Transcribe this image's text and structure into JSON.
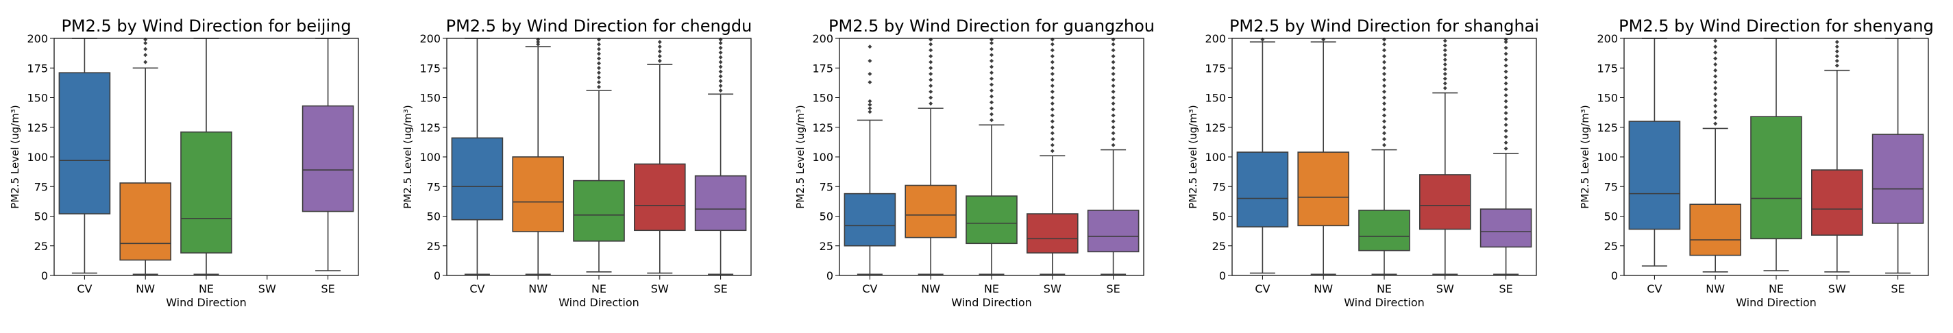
{
  "chart_data": [
    {
      "type": "box",
      "title": "PM2.5 by Wind Direction for beijing",
      "xlabel": "Wind Direction",
      "ylabel": "PM2.5 Level (ug/m³)",
      "ylim": [
        0,
        200
      ],
      "yticks": [
        "0",
        "25",
        "50",
        "75",
        "100",
        "125",
        "150",
        "175",
        "200"
      ],
      "categories": [
        "CV",
        "NW",
        "NE",
        "SW",
        "SE"
      ],
      "colors": [
        "#3a73a9",
        "#e0812e",
        "#4c9a45",
        "#b83f3f",
        "#8e6bae"
      ],
      "boxes": [
        {
          "q1": 52,
          "median": 97,
          "q3": 171,
          "whisker_low": 2,
          "whisker_high": 200,
          "outliers": []
        },
        {
          "q1": 13,
          "median": 27,
          "q3": 78,
          "whisker_low": 1,
          "whisker_high": 175,
          "outliers": [
            180,
            186,
            191,
            196,
            199
          ]
        },
        {
          "q1": 19,
          "median": 48,
          "q3": 121,
          "whisker_low": 1,
          "whisker_high": 200,
          "outliers": []
        },
        null,
        {
          "q1": 54,
          "median": 89,
          "q3": 143,
          "whisker_low": 4,
          "whisker_high": 200,
          "outliers": []
        }
      ]
    },
    {
      "type": "box",
      "title": "PM2.5 by Wind Direction for chengdu",
      "xlabel": "Wind Direction",
      "ylabel": "PM2.5 Level (ug/m³)",
      "ylim": [
        0,
        200
      ],
      "yticks": [
        "0",
        "25",
        "50",
        "75",
        "100",
        "125",
        "150",
        "175",
        "200"
      ],
      "categories": [
        "CV",
        "NW",
        "NE",
        "SW",
        "SE"
      ],
      "colors": [
        "#3a73a9",
        "#e0812e",
        "#4c9a45",
        "#b83f3f",
        "#8e6bae"
      ],
      "boxes": [
        {
          "q1": 47,
          "median": 75,
          "q3": 116,
          "whisker_low": 1,
          "whisker_high": 200,
          "outliers": []
        },
        {
          "q1": 37,
          "median": 62,
          "q3": 100,
          "whisker_low": 1,
          "whisker_high": 193,
          "outliers": [
            195,
            197,
            199
          ]
        },
        {
          "q1": 29,
          "median": 51,
          "q3": 80,
          "whisker_low": 3,
          "whisker_high": 156,
          "outliers": [
            159,
            163,
            167,
            171,
            175,
            179,
            183,
            187,
            191,
            195,
            199
          ]
        },
        {
          "q1": 38,
          "median": 59,
          "q3": 94,
          "whisker_low": 2,
          "whisker_high": 178,
          "outliers": [
            181,
            185,
            189,
            193,
            197
          ]
        },
        {
          "q1": 38,
          "median": 56,
          "q3": 84,
          "whisker_low": 1,
          "whisker_high": 153,
          "outliers": [
            156,
            160,
            164,
            168,
            172,
            176,
            180,
            184,
            188,
            192,
            196,
            199
          ]
        }
      ]
    },
    {
      "type": "box",
      "title": "PM2.5 by Wind Direction for guangzhou",
      "xlabel": "Wind Direction",
      "ylabel": "PM2.5 Level (ug/m³)",
      "ylim": [
        0,
        200
      ],
      "yticks": [
        "0",
        "25",
        "50",
        "75",
        "100",
        "125",
        "150",
        "175",
        "200"
      ],
      "categories": [
        "CV",
        "NW",
        "NE",
        "SW",
        "SE"
      ],
      "colors": [
        "#3a73a9",
        "#e0812e",
        "#4c9a45",
        "#b83f3f",
        "#8e6bae"
      ],
      "boxes": [
        {
          "q1": 25,
          "median": 42,
          "q3": 69,
          "whisker_low": 1,
          "whisker_high": 131,
          "outliers": [
            138,
            141,
            144,
            147,
            163,
            170,
            181,
            193
          ]
        },
        {
          "q1": 32,
          "median": 51,
          "q3": 76,
          "whisker_low": 1,
          "whisker_high": 141,
          "outliers": [
            145,
            150,
            155,
            160,
            165,
            170,
            175,
            180,
            185,
            190,
            195,
            199
          ]
        },
        {
          "q1": 27,
          "median": 44,
          "q3": 67,
          "whisker_low": 1,
          "whisker_high": 127,
          "outliers": [
            131,
            136,
            141,
            146,
            151,
            156,
            161,
            166,
            171,
            176,
            181,
            186,
            191,
            196,
            199
          ]
        },
        {
          "q1": 19,
          "median": 31,
          "q3": 52,
          "whisker_low": 1,
          "whisker_high": 101,
          "outliers": [
            105,
            110,
            115,
            120,
            125,
            130,
            135,
            140,
            145,
            150,
            155,
            160,
            165,
            170,
            175,
            180,
            185,
            190,
            195,
            199
          ]
        },
        {
          "q1": 20,
          "median": 33,
          "q3": 55,
          "whisker_low": 1,
          "whisker_high": 106,
          "outliers": [
            110,
            115,
            120,
            125,
            130,
            135,
            140,
            145,
            150,
            155,
            160,
            165,
            170,
            175,
            180,
            185,
            190,
            195,
            199
          ]
        }
      ]
    },
    {
      "type": "box",
      "title": "PM2.5 by Wind Direction for shanghai",
      "xlabel": "Wind Direction",
      "ylabel": "PM2.5 Level (ug/m³)",
      "ylim": [
        0,
        200
      ],
      "yticks": [
        "0",
        "25",
        "50",
        "75",
        "100",
        "125",
        "150",
        "175",
        "200"
      ],
      "categories": [
        "CV",
        "NW",
        "NE",
        "SW",
        "SE"
      ],
      "colors": [
        "#3a73a9",
        "#e0812e",
        "#4c9a45",
        "#b83f3f",
        "#8e6bae"
      ],
      "boxes": [
        {
          "q1": 41,
          "median": 65,
          "q3": 104,
          "whisker_low": 2,
          "whisker_high": 197,
          "outliers": [
            199
          ]
        },
        {
          "q1": 42,
          "median": 66,
          "q3": 104,
          "whisker_low": 1,
          "whisker_high": 197,
          "outliers": [
            199
          ]
        },
        {
          "q1": 21,
          "median": 33,
          "q3": 55,
          "whisker_low": 1,
          "whisker_high": 106,
          "outliers": [
            110,
            115,
            120,
            125,
            130,
            135,
            140,
            145,
            150,
            155,
            160,
            165,
            170,
            175,
            180,
            185,
            190,
            195,
            199
          ]
        },
        {
          "q1": 39,
          "median": 59,
          "q3": 85,
          "whisker_low": 1,
          "whisker_high": 154,
          "outliers": [
            158,
            162,
            166,
            170,
            174,
            178,
            182,
            186,
            190,
            194,
            198
          ]
        },
        {
          "q1": 24,
          "median": 37,
          "q3": 56,
          "whisker_low": 1,
          "whisker_high": 103,
          "outliers": [
            107,
            112,
            117,
            122,
            127,
            132,
            137,
            142,
            147,
            152,
            157,
            162,
            167,
            172,
            177,
            182,
            187,
            192,
            197,
            199
          ]
        }
      ]
    },
    {
      "type": "box",
      "title": "PM2.5 by Wind Direction for shenyang",
      "xlabel": "Wind Direction",
      "ylabel": "PM2.5 Level (ug/m³)",
      "ylim": [
        0,
        200
      ],
      "yticks": [
        "0",
        "25",
        "50",
        "75",
        "100",
        "125",
        "150",
        "175",
        "200"
      ],
      "categories": [
        "CV",
        "NW",
        "NE",
        "SW",
        "SE"
      ],
      "colors": [
        "#3a73a9",
        "#e0812e",
        "#4c9a45",
        "#b83f3f",
        "#8e6bae"
      ],
      "boxes": [
        {
          "q1": 39,
          "median": 69,
          "q3": 130,
          "whisker_low": 8,
          "whisker_high": 200,
          "outliers": []
        },
        {
          "q1": 17,
          "median": 30,
          "q3": 60,
          "whisker_low": 3,
          "whisker_high": 124,
          "outliers": [
            128,
            133,
            138,
            143,
            148,
            153,
            158,
            163,
            168,
            173,
            178,
            183,
            188,
            193,
            198
          ]
        },
        {
          "q1": 31,
          "median": 65,
          "q3": 134,
          "whisker_low": 4,
          "whisker_high": 200,
          "outliers": []
        },
        {
          "q1": 34,
          "median": 56,
          "q3": 89,
          "whisker_low": 3,
          "whisker_high": 173,
          "outliers": [
            177,
            181,
            185,
            189,
            193,
            197
          ]
        },
        {
          "q1": 44,
          "median": 73,
          "q3": 119,
          "whisker_low": 2,
          "whisker_high": 200,
          "outliers": []
        }
      ]
    }
  ]
}
